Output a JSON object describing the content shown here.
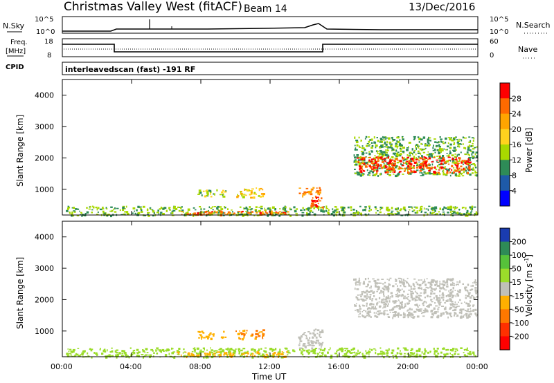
{
  "header": {
    "station": "Christmas Valley West (fitACF)",
    "beam": "Beam 14",
    "date": "13/Dec/2016"
  },
  "sky_panel": {
    "left_label": "N.Sky",
    "right_label": "N.Search",
    "left_ticks": [
      "10^5",
      "10^0"
    ],
    "right_ticks": [
      "10^5",
      "10^0"
    ]
  },
  "freq_panel": {
    "left_label_1": "Freq.",
    "left_label_2": "[MHz]",
    "left_ticks": [
      "18",
      "8"
    ],
    "right_ticks": [
      "60",
      "0"
    ],
    "right_label": "Nave"
  },
  "cpid": {
    "label": "CPID",
    "text": "interleavedscan (fast) -191 RF"
  },
  "axes": {
    "ylabel": "Slant Range [km]",
    "y_ticks": [
      "4000",
      "3000",
      "2000",
      "1000"
    ],
    "x_ticks": [
      "00:00",
      "04:00",
      "08:00",
      "12:00",
      "16:00",
      "20:00",
      "00:00"
    ],
    "xlabel": "Time UT"
  },
  "power_scale": {
    "label": "Power [dB]",
    "ticks": [
      "28",
      "24",
      "20",
      "16",
      "12",
      "8",
      "4"
    ],
    "colors": [
      "#ff0000",
      "#ff6a00",
      "#ffa500",
      "#ffd21e",
      "#a8d800",
      "#2e8b57",
      "#1e5aa8",
      "#0000ff"
    ]
  },
  "velocity_scale": {
    "label": "Velocity [m s",
    "label_sup": "-1",
    "label_end": "]",
    "ticks": [
      "200",
      "100",
      "50",
      "15",
      "-15",
      "-50",
      "-100",
      "-200"
    ],
    "colors": [
      "#1a3cb0",
      "#2e8b57",
      "#56c23a",
      "#9bdc2a",
      "#c0c0b8",
      "#ffb000",
      "#ff7800",
      "#ff3000",
      "#ff0000"
    ]
  },
  "chart_data": {
    "type": "heatmap",
    "title": "Christmas Valley West (fitACF) Beam 14 13/Dec/2016",
    "xlabel": "Time UT",
    "ylabel": "Slant Range [km]",
    "xlim": [
      0,
      24
    ],
    "ylim": [
      180,
      4500
    ],
    "power_regions": [
      {
        "t0": 0.2,
        "t1": 24,
        "r0": 180,
        "r1": 480,
        "power": 12
      },
      {
        "t0": 6.5,
        "t1": 13.0,
        "r0": 200,
        "r1": 330,
        "power": 26
      },
      {
        "t0": 7.8,
        "t1": 9.4,
        "r0": 780,
        "r1": 1010,
        "power": 14
      },
      {
        "t0": 10.0,
        "t1": 11.6,
        "r0": 760,
        "r1": 1060,
        "power": 18
      },
      {
        "t0": 13.6,
        "t1": 14.9,
        "r0": 800,
        "r1": 1080,
        "power": 24
      },
      {
        "t0": 14.3,
        "t1": 15.0,
        "r0": 430,
        "r1": 800,
        "power": 28
      },
      {
        "t0": 16.8,
        "t1": 23.9,
        "r0": 1450,
        "r1": 2700,
        "power": 12
      },
      {
        "t0": 17.0,
        "t1": 23.5,
        "r0": 1550,
        "r1": 2050,
        "power": 28
      }
    ],
    "velocity_regions": [
      {
        "t0": 0.2,
        "t1": 24,
        "r0": 180,
        "r1": 480,
        "velocity": 20
      },
      {
        "t0": 6.5,
        "t1": 13.0,
        "r0": 200,
        "r1": 360,
        "velocity": -40
      },
      {
        "t0": 7.8,
        "t1": 9.4,
        "r0": 780,
        "r1": 1010,
        "velocity": -40
      },
      {
        "t0": 10.0,
        "t1": 11.6,
        "r0": 760,
        "r1": 1060,
        "velocity": -50
      },
      {
        "t0": 13.6,
        "t1": 15.0,
        "r0": 450,
        "r1": 1080,
        "velocity": 0
      },
      {
        "t0": 16.8,
        "t1": 23.9,
        "r0": 1450,
        "r1": 2700,
        "velocity": 0
      }
    ]
  }
}
